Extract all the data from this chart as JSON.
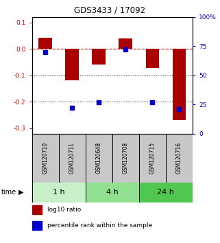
{
  "title": "GDS3433 / 17092",
  "samples": [
    "GSM120710",
    "GSM120711",
    "GSM120648",
    "GSM120708",
    "GSM120715",
    "GSM120716"
  ],
  "log10_ratio": [
    0.042,
    -0.12,
    -0.06,
    0.038,
    -0.072,
    -0.27
  ],
  "percentile_rank": [
    70,
    22,
    27,
    72,
    27,
    21
  ],
  "groups": [
    {
      "label": "1 h",
      "indices": [
        0,
        1
      ],
      "color": "#c8f0c8"
    },
    {
      "label": "4 h",
      "indices": [
        2,
        3
      ],
      "color": "#90e090"
    },
    {
      "label": "24 h",
      "indices": [
        4,
        5
      ],
      "color": "#50c850"
    }
  ],
  "bar_color": "#aa0000",
  "dot_color": "#0000cc",
  "ylim_left": [
    -0.32,
    0.12
  ],
  "ylim_right": [
    0,
    100
  ],
  "yticks_left": [
    0.1,
    0.0,
    -0.1,
    -0.2,
    -0.3
  ],
  "yticks_right": [
    100,
    75,
    50,
    25,
    0
  ],
  "hline_y": 0.0,
  "dotted_lines": [
    -0.1,
    -0.2
  ],
  "bar_width": 0.5,
  "sample_box_color": "#c8c8c8",
  "label_log10": "log10 ratio",
  "label_percentile": "percentile rank within the sample",
  "title_fontsize": 8.5,
  "tick_fontsize": 6.5,
  "sample_fontsize": 5.5,
  "group_fontsize": 8,
  "legend_fontsize": 6.5
}
